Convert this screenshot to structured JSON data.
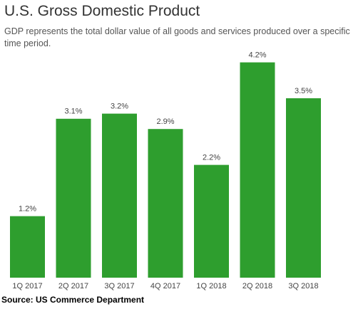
{
  "chart_data": {
    "type": "bar",
    "title": "U.S. Gross Domestic Product",
    "subtitle": "GDP represents the total dollar value of all goods and services produced over a specific time period.",
    "categories": [
      "1Q 2017",
      "2Q 2017",
      "3Q 2017",
      "4Q 2017",
      "1Q 2018",
      "2Q 2018",
      "3Q 2018"
    ],
    "values": [
      1.2,
      3.1,
      3.2,
      2.9,
      2.2,
      4.2,
      3.5
    ],
    "value_labels": [
      "1.2%",
      "3.1%",
      "3.2%",
      "2.9%",
      "2.2%",
      "4.2%",
      "3.5%"
    ],
    "color": "#2e9e2e",
    "source": "Source: US Commerce Department"
  }
}
